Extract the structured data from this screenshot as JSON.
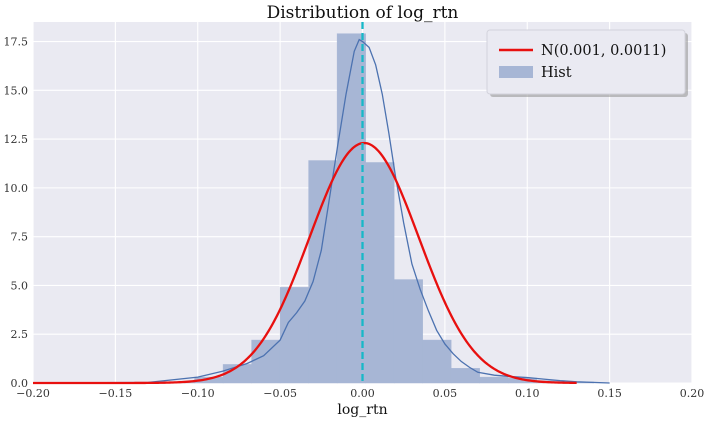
{
  "chart_data": {
    "type": "bar",
    "title": "Distribution of log_rtn",
    "xlabel": "log_rtn",
    "ylabel": "",
    "xlim": [
      -0.2,
      0.2
    ],
    "ylim": [
      0,
      18.5
    ],
    "x_ticks": [
      -0.2,
      -0.15,
      -0.1,
      -0.05,
      0.0,
      0.05,
      0.1,
      0.15,
      0.2
    ],
    "x_tick_labels": [
      "−0.20",
      "−0.15",
      "−0.10",
      "−0.05",
      "0.00",
      "0.05",
      "0.10",
      "0.15",
      "0.20"
    ],
    "y_ticks": [
      0,
      2.5,
      5,
      7.5,
      10,
      12.5,
      15,
      17.5
    ],
    "y_tick_labels": [
      "0.0",
      "2.5",
      "5.0",
      "7.5",
      "10.0",
      "12.5",
      "15.0",
      "17.5"
    ],
    "grid": true,
    "legend_position": "top-right",
    "legend": [
      {
        "label": "N(0.001, 0.0011)",
        "kind": "line",
        "color": "#e8100f"
      },
      {
        "label": "Hist",
        "kind": "patch",
        "color": "#a7b6d5"
      }
    ],
    "histogram": {
      "name": "Hist",
      "color": "#a7b6d5",
      "bins": [
        {
          "x0": -0.1365,
          "x1": -0.1192,
          "height": 0.01
        },
        {
          "x0": -0.1192,
          "x1": -0.1019,
          "height": 0.05
        },
        {
          "x0": -0.1019,
          "x1": -0.0846,
          "height": 0.3
        },
        {
          "x0": -0.0846,
          "x1": -0.0673,
          "height": 0.95
        },
        {
          "x0": -0.0673,
          "x1": -0.05,
          "height": 2.2
        },
        {
          "x0": -0.05,
          "x1": -0.0327,
          "height": 4.9
        },
        {
          "x0": -0.0327,
          "x1": -0.0154,
          "height": 11.4
        },
        {
          "x0": -0.0154,
          "x1": 0.0019,
          "height": 17.9
        },
        {
          "x0": 0.0019,
          "x1": 0.0192,
          "height": 11.3
        },
        {
          "x0": 0.0192,
          "x1": 0.0365,
          "height": 5.3
        },
        {
          "x0": 0.0365,
          "x1": 0.0538,
          "height": 2.2
        },
        {
          "x0": 0.0538,
          "x1": 0.0711,
          "height": 0.75
        },
        {
          "x0": 0.0711,
          "x1": 0.0884,
          "height": 0.3
        },
        {
          "x0": 0.0884,
          "x1": 0.1057,
          "height": 0.25
        },
        {
          "x0": 0.1057,
          "x1": 0.123,
          "height": 0.12
        },
        {
          "x0": 0.123,
          "x1": 0.1403,
          "height": 0.05
        }
      ]
    },
    "kde": {
      "color": "#4c72b0",
      "x": [
        -0.2,
        -0.13,
        -0.1,
        -0.085,
        -0.07,
        -0.06,
        -0.05,
        -0.045,
        -0.04,
        -0.035,
        -0.03,
        -0.025,
        -0.02,
        -0.015,
        -0.01,
        -0.005,
        -0.002,
        0.0,
        0.004,
        0.008,
        0.012,
        0.016,
        0.02,
        0.025,
        0.03,
        0.035,
        0.04,
        0.045,
        0.05,
        0.055,
        0.06,
        0.065,
        0.07,
        0.08,
        0.09,
        0.1,
        0.11,
        0.12,
        0.13,
        0.15
      ],
      "y": [
        0.0,
        0.03,
        0.3,
        0.6,
        1.0,
        1.4,
        2.2,
        3.1,
        3.6,
        4.2,
        5.2,
        6.8,
        9.5,
        12.2,
        14.8,
        17.0,
        17.6,
        17.5,
        17.2,
        16.3,
        14.8,
        12.8,
        10.6,
        8.2,
        6.1,
        4.8,
        3.7,
        2.7,
        2.0,
        1.5,
        1.1,
        0.8,
        0.55,
        0.4,
        0.33,
        0.28,
        0.2,
        0.12,
        0.06,
        0.0
      ]
    },
    "normal_curve": {
      "name": "N(0.001, 0.0011)",
      "color": "#e8100f",
      "mean": 0.001,
      "variance": 0.0011,
      "peak_y": 12.3
    },
    "vline": {
      "x": 0.0,
      "color": "#17b8c8",
      "style": "dashed"
    }
  }
}
